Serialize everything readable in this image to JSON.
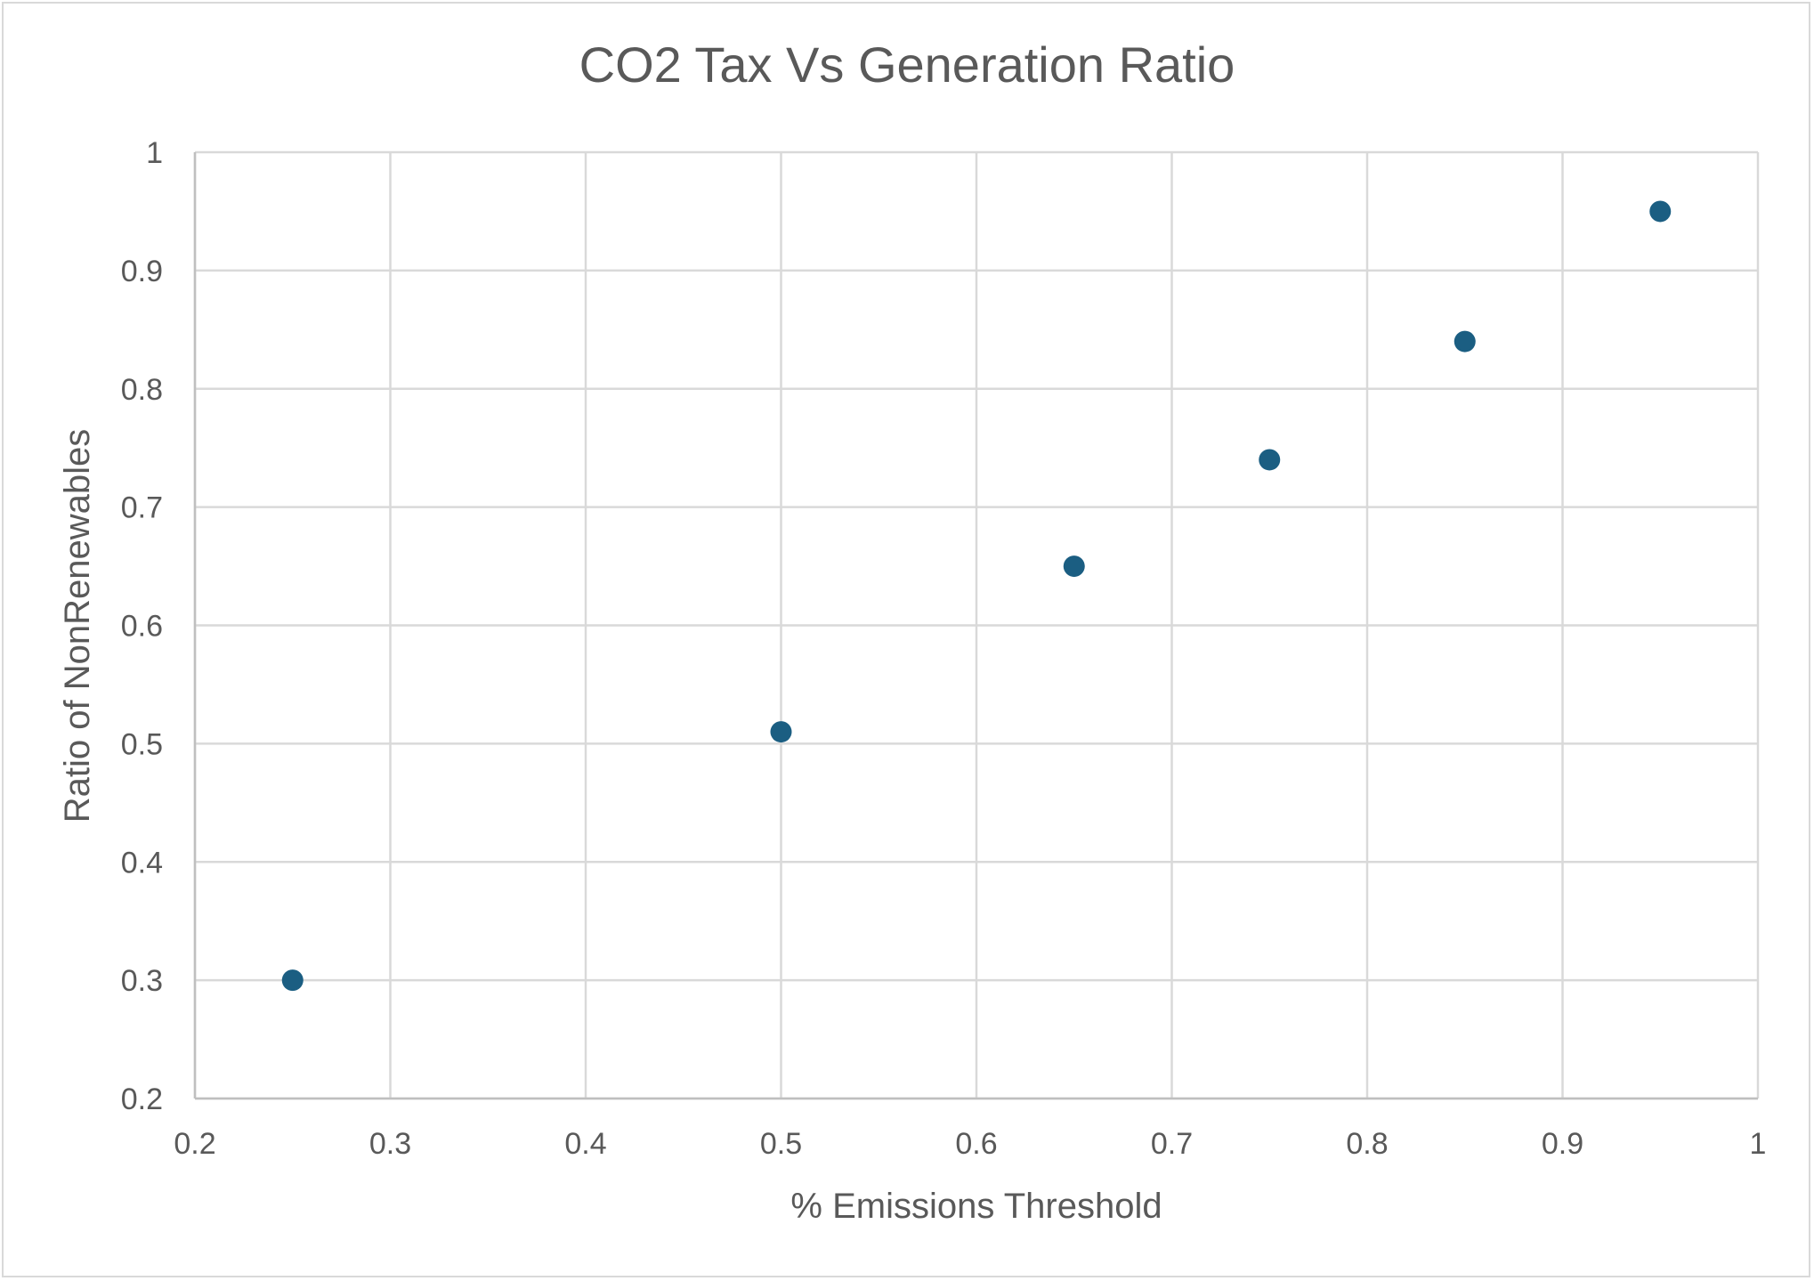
{
  "chart_data": {
    "type": "scatter",
    "title": "CO2 Tax Vs Generation Ratio",
    "xlabel": "% Emissions Threshold",
    "ylabel": "Ratio of NonRenewables",
    "xlim": [
      0.2,
      1
    ],
    "ylim": [
      0.2,
      1
    ],
    "x_ticks": [
      "0.2",
      "0.3",
      "0.4",
      "0.5",
      "0.6",
      "0.7",
      "0.8",
      "0.9",
      "1"
    ],
    "y_ticks": [
      "0.2",
      "0.3",
      "0.4",
      "0.5",
      "0.6",
      "0.7",
      "0.8",
      "0.9",
      "1"
    ],
    "grid": true,
    "legend": "none",
    "marker_color": "#1b5e82",
    "series": [
      {
        "x": [
          0.25,
          0.5,
          0.65,
          0.75,
          0.85,
          0.95
        ],
        "y": [
          0.3,
          0.51,
          0.65,
          0.74,
          0.84,
          0.95
        ]
      }
    ]
  }
}
